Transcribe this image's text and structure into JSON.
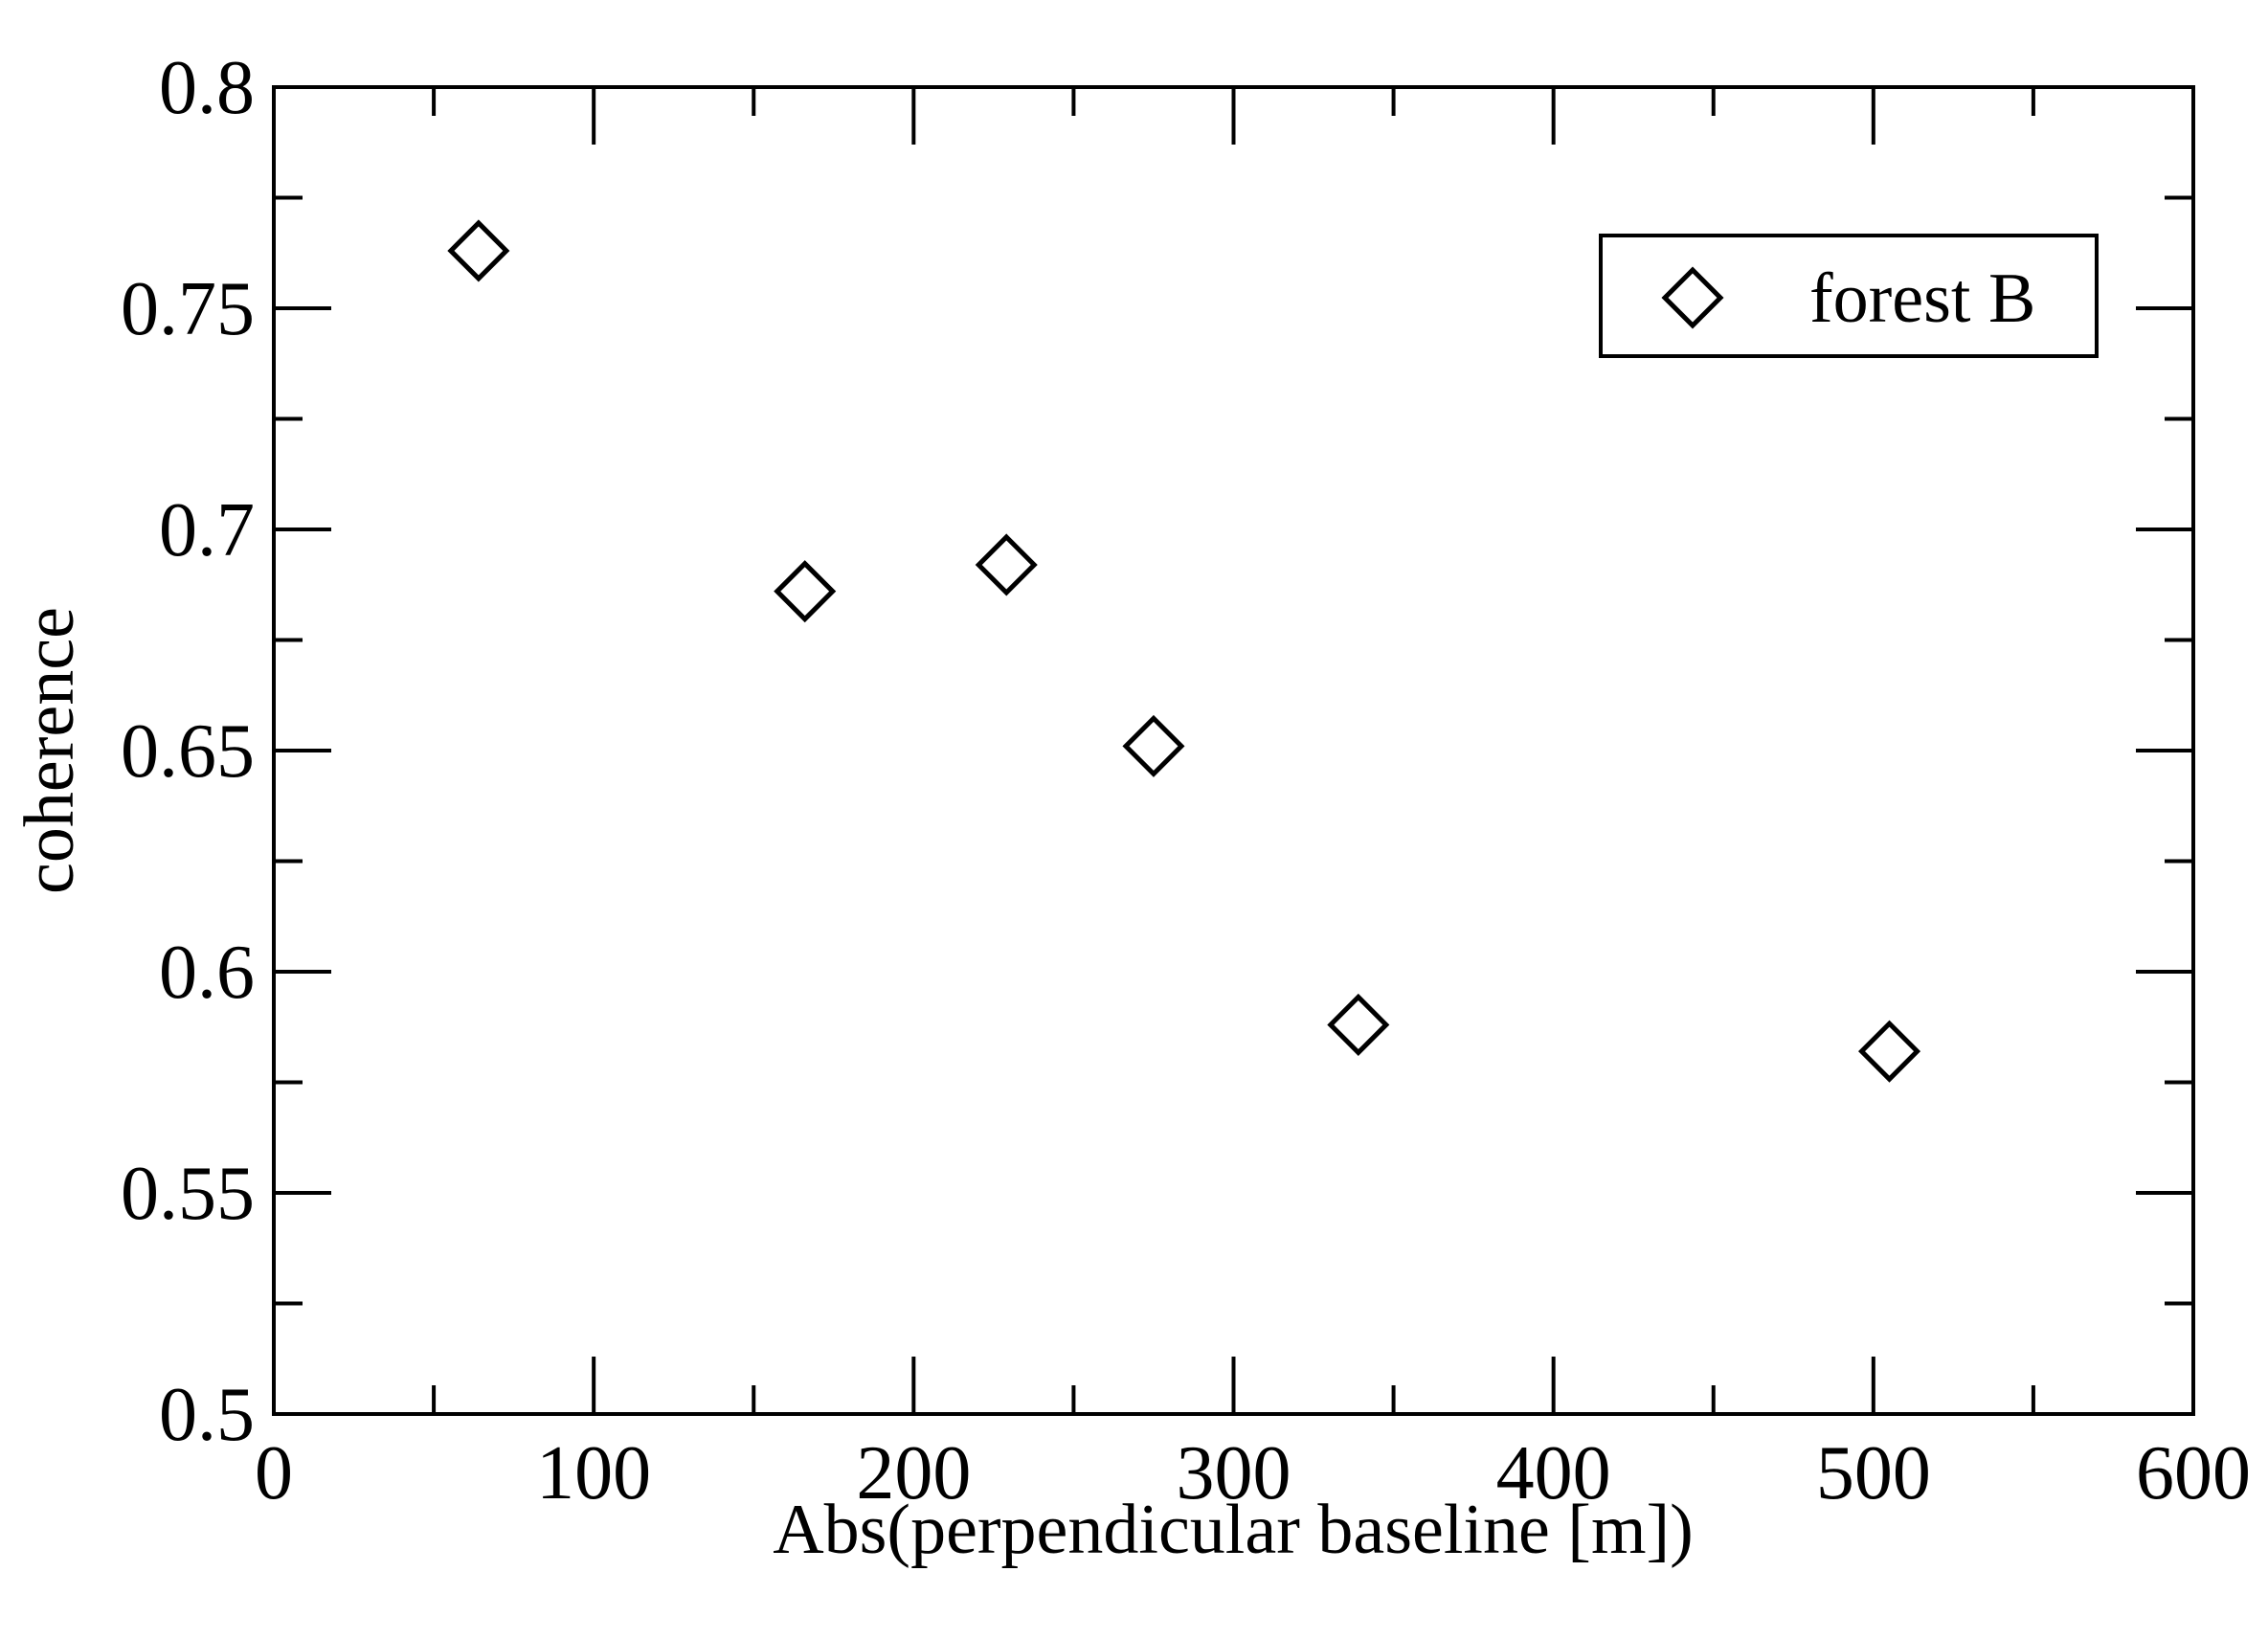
{
  "chart_data": {
    "type": "scatter",
    "xlabel": "Abs(perpendicular baseline [m])",
    "ylabel": "coherence",
    "xlim": [
      0,
      600
    ],
    "ylim": [
      0.5,
      0.8
    ],
    "x_ticks": [
      0,
      100,
      200,
      300,
      400,
      500,
      600
    ],
    "x_tick_labels": [
      "0",
      "100",
      "200",
      "300",
      "400",
      "500",
      "600"
    ],
    "y_ticks": [
      0.5,
      0.55,
      0.6,
      0.65,
      0.7,
      0.75,
      0.8
    ],
    "y_tick_labels": [
      "0.5",
      "0.55",
      "0.6",
      "0.65",
      "0.7",
      "0.75",
      "0.8"
    ],
    "x_minor_step": 50,
    "y_minor_step": 0.025,
    "grid": false,
    "legend": {
      "position": "top-right"
    },
    "series": [
      {
        "name": "forest B",
        "marker": "diamond-open",
        "color": "#000000",
        "points": [
          {
            "x": 64,
            "y": 0.763
          },
          {
            "x": 166,
            "y": 0.686
          },
          {
            "x": 229,
            "y": 0.692
          },
          {
            "x": 275,
            "y": 0.651
          },
          {
            "x": 339,
            "y": 0.588
          },
          {
            "x": 505,
            "y": 0.582
          }
        ]
      }
    ]
  }
}
